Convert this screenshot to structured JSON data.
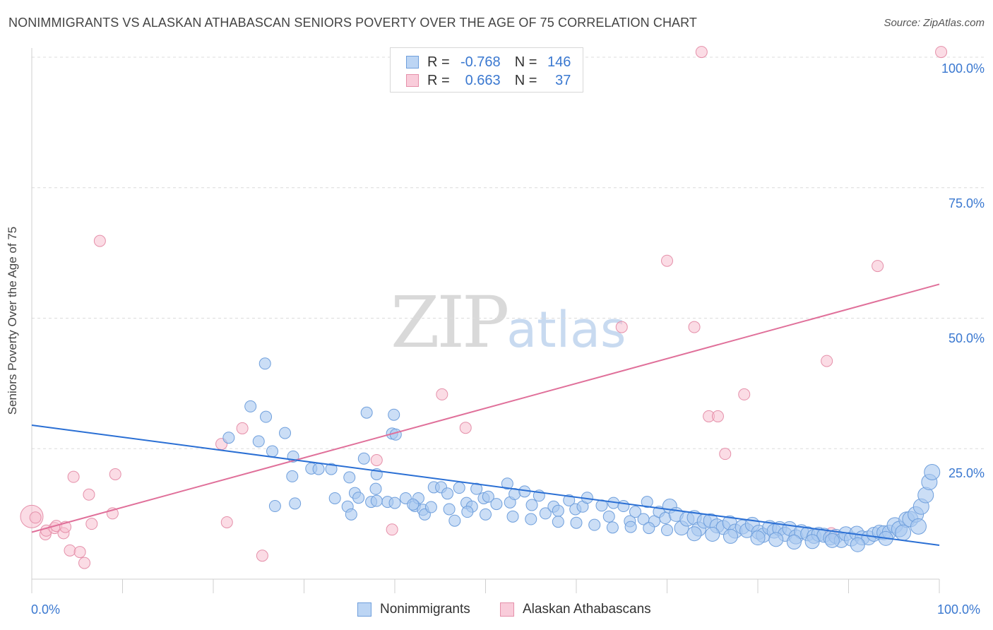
{
  "title": "NONIMMIGRANTS VS ALASKAN ATHABASCAN SENIORS POVERTY OVER THE AGE OF 75 CORRELATION CHART",
  "source": "Source: ZipAtlas.com",
  "watermark": {
    "zip": "ZIP",
    "atlas": "atlas"
  },
  "stats": {
    "r_label": "R =",
    "n_label": "N =",
    "series1": {
      "r": "-0.768",
      "n": "146"
    },
    "series2": {
      "r": "0.663",
      "n": "37"
    }
  },
  "legend": {
    "series1": "Nonimmigrants",
    "series2": "Alaskan Athabascans"
  },
  "colors": {
    "series1_fill": "#a9c8f0",
    "series1_stroke": "#6f9fdc",
    "series1_line": "#2a6fd4",
    "series2_fill": "#f7c0d0",
    "series2_stroke": "#e590aa",
    "series2_line": "#e0709a",
    "tick_text": "#3a78d0"
  },
  "chart_data": {
    "type": "scatter",
    "title": "NONIMMIGRANTS VS ALASKAN ATHABASCAN SENIORS POVERTY OVER THE AGE OF 75 CORRELATION CHART",
    "xlabel": "",
    "ylabel": "Seniors Poverty Over the Age of 75",
    "xlim": [
      0,
      100
    ],
    "ylim": [
      0,
      100
    ],
    "x_ticks": [
      "0.0%",
      "100.0%"
    ],
    "y_ticks": [
      "25.0%",
      "50.0%",
      "75.0%",
      "100.0%"
    ],
    "grid": "horizontal dashed",
    "legend_position": "bottom-center",
    "series": [
      {
        "name": "Nonimmigrants",
        "trend": {
          "x": [
            0,
            100
          ],
          "y": [
            29.5,
            6.5
          ]
        },
        "points": [
          [
            24.1,
            33.1
          ],
          [
            25.7,
            41.3
          ],
          [
            21.7,
            27.1
          ],
          [
            25.0,
            26.4
          ],
          [
            26.5,
            24.5
          ],
          [
            25.8,
            31.1
          ],
          [
            27.9,
            28.0
          ],
          [
            28.8,
            23.5
          ],
          [
            28.7,
            19.7
          ],
          [
            26.8,
            14.0
          ],
          [
            29.0,
            14.5
          ],
          [
            30.8,
            21.2
          ],
          [
            31.6,
            21.1
          ],
          [
            33.0,
            21.1
          ],
          [
            33.4,
            15.5
          ],
          [
            34.8,
            13.9
          ],
          [
            35.2,
            12.4
          ],
          [
            35.0,
            19.5
          ],
          [
            36.6,
            23.1
          ],
          [
            35.6,
            16.5
          ],
          [
            36.9,
            31.9
          ],
          [
            37.9,
            17.3
          ],
          [
            37.4,
            14.8
          ],
          [
            38.0,
            20.1
          ],
          [
            39.7,
            27.9
          ],
          [
            39.2,
            14.8
          ],
          [
            40.1,
            27.7
          ],
          [
            39.9,
            31.5
          ],
          [
            41.2,
            15.5
          ],
          [
            42.2,
            14.0
          ],
          [
            42.6,
            15.5
          ],
          [
            43.1,
            13.3
          ],
          [
            43.3,
            12.4
          ],
          [
            44.3,
            17.6
          ],
          [
            45.1,
            17.6
          ],
          [
            45.8,
            16.4
          ],
          [
            46.6,
            11.2
          ],
          [
            47.1,
            17.5
          ],
          [
            47.9,
            14.6
          ],
          [
            48.5,
            13.9
          ],
          [
            49.0,
            17.3
          ],
          [
            49.8,
            15.5
          ],
          [
            50.3,
            15.8
          ],
          [
            51.2,
            14.4
          ],
          [
            52.4,
            18.3
          ],
          [
            52.7,
            14.7
          ],
          [
            53.2,
            16.3
          ],
          [
            54.3,
            16.8
          ],
          [
            55.1,
            14.2
          ],
          [
            55.9,
            16.0
          ],
          [
            56.6,
            12.6
          ],
          [
            57.5,
            13.9
          ],
          [
            58.0,
            13.1
          ],
          [
            59.2,
            15.1
          ],
          [
            59.9,
            13.4
          ],
          [
            60.7,
            13.9
          ],
          [
            61.2,
            15.6
          ],
          [
            62.8,
            14.1
          ],
          [
            63.6,
            12.0
          ],
          [
            64.1,
            14.6
          ],
          [
            65.2,
            14.0
          ],
          [
            65.9,
            11.1
          ],
          [
            66.5,
            12.9
          ],
          [
            67.4,
            11.5
          ],
          [
            67.8,
            14.8
          ],
          [
            68.6,
            11.1
          ],
          [
            69.1,
            12.9
          ],
          [
            69.8,
            11.7
          ],
          [
            70.3,
            14.0
          ],
          [
            71.0,
            12.4
          ],
          [
            71.6,
            9.8
          ],
          [
            72.2,
            11.5
          ],
          [
            73.0,
            11.8
          ],
          [
            73.5,
            9.6
          ],
          [
            74.1,
            11.1
          ],
          [
            74.8,
            11.2
          ],
          [
            75.5,
            10.2
          ],
          [
            76.2,
            9.9
          ],
          [
            76.9,
            10.8
          ],
          [
            77.5,
            9.2
          ],
          [
            78.3,
            10.0
          ],
          [
            78.8,
            9.3
          ],
          [
            79.4,
            10.5
          ],
          [
            80.1,
            9.0
          ],
          [
            80.6,
            8.4
          ],
          [
            81.3,
            9.9
          ],
          [
            81.8,
            9.2
          ],
          [
            82.4,
            9.7
          ],
          [
            83.0,
            8.6
          ],
          [
            83.5,
            9.7
          ],
          [
            84.2,
            8.1
          ],
          [
            84.8,
            9.1
          ],
          [
            85.5,
            8.7
          ],
          [
            86.2,
            8.2
          ],
          [
            86.7,
            8.6
          ],
          [
            87.3,
            8.4
          ],
          [
            88.0,
            7.9
          ],
          [
            88.6,
            8.2
          ],
          [
            89.2,
            7.4
          ],
          [
            89.7,
            8.7
          ],
          [
            90.3,
            7.7
          ],
          [
            90.9,
            8.8
          ],
          [
            91.5,
            7.9
          ],
          [
            92.2,
            7.9
          ],
          [
            92.8,
            8.6
          ],
          [
            93.4,
            9.0
          ],
          [
            93.9,
            8.9
          ],
          [
            94.5,
            9.0
          ],
          [
            95.1,
            10.3
          ],
          [
            95.6,
            9.6
          ],
          [
            96.4,
            11.4
          ],
          [
            96.8,
            11.5
          ],
          [
            97.4,
            12.4
          ],
          [
            98.0,
            13.9
          ],
          [
            98.5,
            16.1
          ],
          [
            98.9,
            18.6
          ],
          [
            99.2,
            20.5
          ],
          [
            97.7,
            10.1
          ],
          [
            96.0,
            8.9
          ],
          [
            94.1,
            7.8
          ],
          [
            91.0,
            6.6
          ],
          [
            88.2,
            7.4
          ],
          [
            86.0,
            7.2
          ],
          [
            84.0,
            7.1
          ],
          [
            82.0,
            7.6
          ],
          [
            80.0,
            7.9
          ],
          [
            77.0,
            8.2
          ],
          [
            75.0,
            8.6
          ],
          [
            73.0,
            8.7
          ],
          [
            70.0,
            9.4
          ],
          [
            68.0,
            9.8
          ],
          [
            66.0,
            10.0
          ],
          [
            64.0,
            9.9
          ],
          [
            62.0,
            10.4
          ],
          [
            60.0,
            10.8
          ],
          [
            58.0,
            11.0
          ],
          [
            55.0,
            11.5
          ],
          [
            53.0,
            12.0
          ],
          [
            50.0,
            12.4
          ],
          [
            48.0,
            12.9
          ],
          [
            46.0,
            13.4
          ],
          [
            44.0,
            13.8
          ],
          [
            42.0,
            14.3
          ],
          [
            40.0,
            14.6
          ],
          [
            38.0,
            15.0
          ],
          [
            36.0,
            15.6
          ]
        ]
      },
      {
        "name": "Alaskan Athabascans",
        "trend": {
          "x": [
            0,
            100
          ],
          "y": [
            9.0,
            56.5
          ]
        },
        "points": [
          [
            0.0,
            12.0
          ],
          [
            0.4,
            11.8
          ],
          [
            1.5,
            8.6
          ],
          [
            1.6,
            9.3
          ],
          [
            2.5,
            9.8
          ],
          [
            2.7,
            10.2
          ],
          [
            3.5,
            8.8
          ],
          [
            3.7,
            10.0
          ],
          [
            4.2,
            5.5
          ],
          [
            4.6,
            19.6
          ],
          [
            5.3,
            5.2
          ],
          [
            5.8,
            3.1
          ],
          [
            6.3,
            16.2
          ],
          [
            6.6,
            10.6
          ],
          [
            7.5,
            64.8
          ],
          [
            8.9,
            12.6
          ],
          [
            9.2,
            20.1
          ],
          [
            20.9,
            25.9
          ],
          [
            21.5,
            10.9
          ],
          [
            23.2,
            28.9
          ],
          [
            25.4,
            4.5
          ],
          [
            38.0,
            22.8
          ],
          [
            39.7,
            9.5
          ],
          [
            45.2,
            35.4
          ],
          [
            47.8,
            29.0
          ],
          [
            65.0,
            48.3
          ],
          [
            70.0,
            61.0
          ],
          [
            73.0,
            48.3
          ],
          [
            73.8,
            101.0
          ],
          [
            74.6,
            31.2
          ],
          [
            75.6,
            31.2
          ],
          [
            76.4,
            24.0
          ],
          [
            78.5,
            35.4
          ],
          [
            87.6,
            41.8
          ],
          [
            88.1,
            8.8
          ],
          [
            93.2,
            60.0
          ],
          [
            100.2,
            101.0
          ]
        ]
      }
    ]
  }
}
